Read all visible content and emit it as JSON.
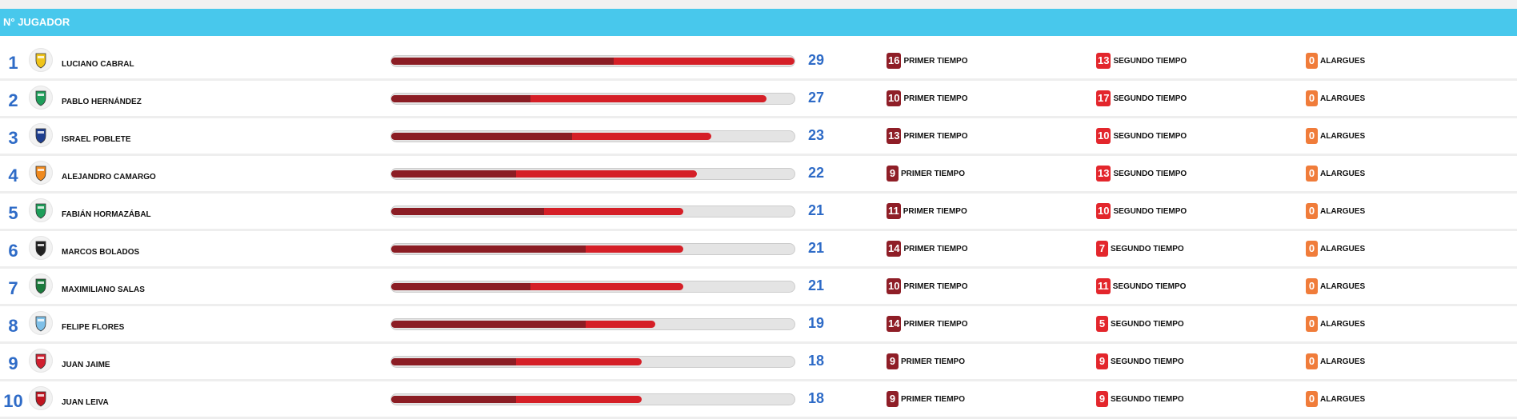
{
  "header": {
    "title": "N° JUGADOR"
  },
  "labels": {
    "first": "PRIMER TIEMPO",
    "second": "SEGUNDO TIEMPO",
    "extra": "ALARGUES"
  },
  "colors": {
    "header": "#48c8ec",
    "rank": "#2e6bc7",
    "first_half": "#8f1e27",
    "second_half": "#e3262c",
    "extra": "#f07c3a"
  },
  "max_goals": 29,
  "players": [
    {
      "rank": "1",
      "name": "LUCIANO CABRAL",
      "total": "29",
      "first": "16",
      "second": "13",
      "extra": "0",
      "club_icon": "coquimbo-badge-icon",
      "icon_color": "#f0c419"
    },
    {
      "rank": "2",
      "name": "PABLO HERNÁNDEZ",
      "total": "27",
      "first": "10",
      "second": "17",
      "extra": "0",
      "club_icon": "o-higgins-badge-icon",
      "icon_color": "#1e9e5a"
    },
    {
      "rank": "3",
      "name": "ISRAEL POBLETE",
      "total": "23",
      "first": "13",
      "second": "10",
      "extra": "0",
      "club_icon": "u-de-chile-badge-icon",
      "icon_color": "#1e3e8f"
    },
    {
      "rank": "4",
      "name": "ALEJANDRO CAMARGO",
      "total": "22",
      "first": "9",
      "second": "13",
      "extra": "0",
      "club_icon": "cobreloa-badge-icon",
      "icon_color": "#f08a1e"
    },
    {
      "rank": "5",
      "name": "FABIÁN HORMAZÁBAL",
      "total": "21",
      "first": "11",
      "second": "10",
      "extra": "0",
      "club_icon": "o-higgins-badge-icon",
      "icon_color": "#1e9e5a"
    },
    {
      "rank": "6",
      "name": "MARCOS BOLADOS",
      "total": "21",
      "first": "14",
      "second": "7",
      "extra": "0",
      "club_icon": "colo-colo-badge-icon",
      "icon_color": "#202020"
    },
    {
      "rank": "7",
      "name": "MAXIMILIANO SALAS",
      "total": "21",
      "first": "10",
      "second": "11",
      "extra": "0",
      "club_icon": "palestino-badge-icon",
      "icon_color": "#1a7a3c"
    },
    {
      "rank": "8",
      "name": "FELIPE FLORES",
      "total": "19",
      "first": "14",
      "second": "5",
      "extra": "0",
      "club_icon": "audax-badge-icon",
      "icon_color": "#7fc0e8"
    },
    {
      "rank": "9",
      "name": "JUAN JAIME",
      "total": "18",
      "first": "9",
      "second": "9",
      "extra": "0",
      "club_icon": "curico-badge-icon",
      "icon_color": "#d01f2f"
    },
    {
      "rank": "10",
      "name": "JUAN LEIVA",
      "total": "18",
      "first": "9",
      "second": "9",
      "extra": "0",
      "club_icon": "rangers-badge-icon",
      "icon_color": "#c01520"
    }
  ]
}
